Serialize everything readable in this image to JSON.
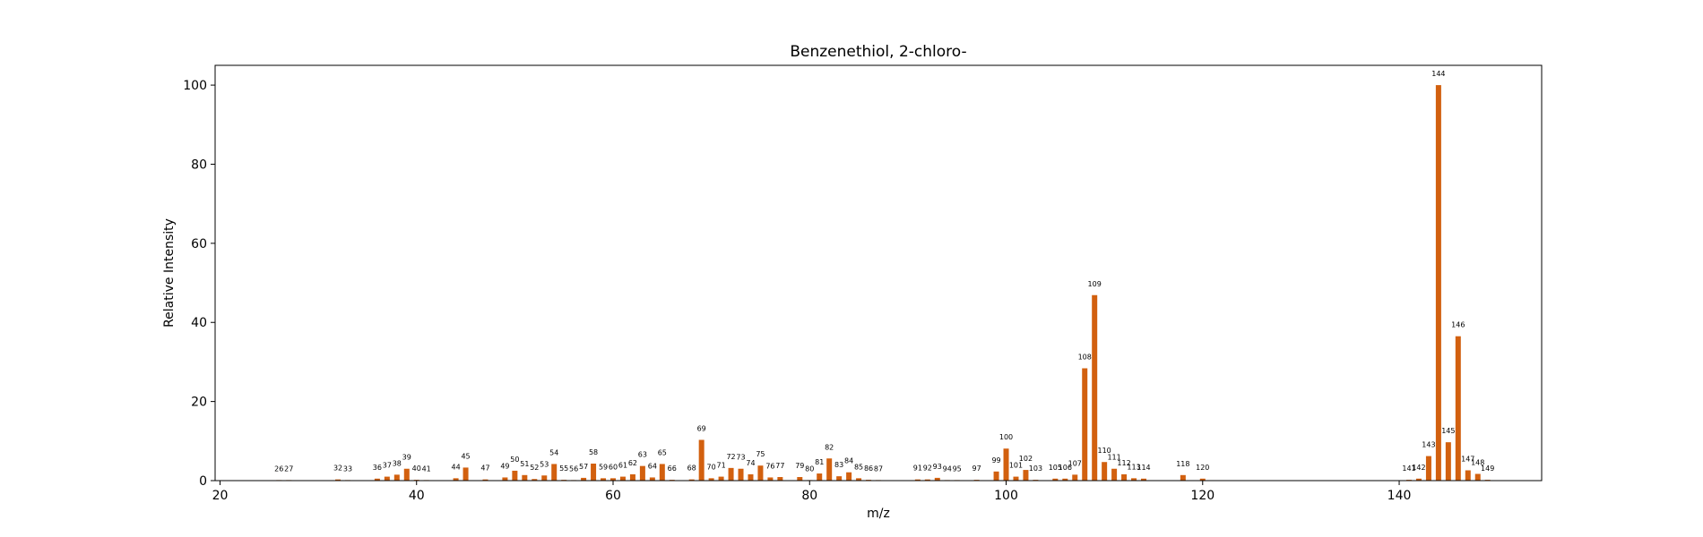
{
  "chart_data": {
    "type": "bar",
    "title": "Benzenethiol, 2-chloro-",
    "xlabel": "m/z",
    "ylabel": "Relative Intensity",
    "xlim": [
      19.5,
      154.5
    ],
    "ylim": [
      0,
      105
    ],
    "xticks": [
      20,
      40,
      60,
      80,
      100,
      120,
      140
    ],
    "yticks": [
      0,
      20,
      40,
      60,
      80,
      100
    ],
    "grid": false,
    "bar_color": "#d2600f",
    "x": [
      26,
      27,
      32,
      33,
      36,
      37,
      38,
      39,
      40,
      41,
      44,
      45,
      47,
      49,
      50,
      51,
      52,
      53,
      54,
      55,
      56,
      57,
      58,
      59,
      60,
      61,
      62,
      63,
      64,
      65,
      66,
      68,
      69,
      70,
      71,
      72,
      73,
      74,
      75,
      76,
      77,
      79,
      80,
      81,
      82,
      83,
      84,
      85,
      86,
      87,
      91,
      92,
      93,
      94,
      95,
      97,
      99,
      100,
      101,
      102,
      103,
      105,
      106,
      107,
      108,
      109,
      110,
      111,
      112,
      113,
      114,
      118,
      120,
      141,
      142,
      143,
      144,
      145,
      146,
      147,
      148,
      149
    ],
    "values": [
      0.1,
      0.1,
      0.3,
      0.1,
      0.5,
      1.0,
      1.5,
      3.0,
      0.2,
      0.1,
      0.6,
      3.3,
      0.3,
      0.8,
      2.5,
      1.4,
      0.4,
      1.3,
      4.2,
      0.2,
      0.1,
      0.7,
      4.3,
      0.6,
      0.6,
      1.0,
      1.6,
      3.7,
      0.8,
      4.2,
      0.2,
      0.3,
      10.3,
      0.6,
      1.0,
      3.2,
      3.0,
      1.6,
      3.8,
      0.8,
      0.9,
      0.9,
      0.1,
      1.8,
      5.6,
      1.1,
      2.1,
      0.6,
      0.2,
      0.1,
      0.3,
      0.3,
      0.7,
      0.1,
      0.1,
      0.2,
      2.3,
      8.1,
      1.0,
      2.7,
      0.2,
      0.5,
      0.5,
      1.5,
      28.4,
      46.9,
      4.7,
      3.0,
      1.6,
      0.6,
      0.5,
      1.4,
      0.5,
      0.2,
      0.5,
      6.2,
      100.0,
      9.7,
      36.5,
      2.6,
      1.7,
      0.2
    ],
    "labels": [
      "26",
      "27",
      "32",
      "33",
      "36",
      "37",
      "38",
      "39",
      "40",
      "41",
      "44",
      "45",
      "47",
      "49",
      "50",
      "51",
      "52",
      "53",
      "54",
      "55",
      "56",
      "57",
      "58",
      "59",
      "60",
      "61",
      "62",
      "63",
      "64",
      "65",
      "66",
      "68",
      "69",
      "70",
      "71",
      "72",
      "73",
      "74",
      "75",
      "76",
      "77",
      "79",
      "80",
      "81",
      "82",
      "83",
      "84",
      "85",
      "86",
      "87",
      "91",
      "92",
      "93",
      "94",
      "95",
      "97",
      "99",
      "100",
      "101",
      "102",
      "103",
      "105",
      "106",
      "107",
      "108",
      "109",
      "110",
      "111",
      "112",
      "113",
      "114",
      "118",
      "120",
      "141",
      "142",
      "143",
      "144",
      "145",
      "146",
      "147",
      "148",
      "149"
    ]
  }
}
